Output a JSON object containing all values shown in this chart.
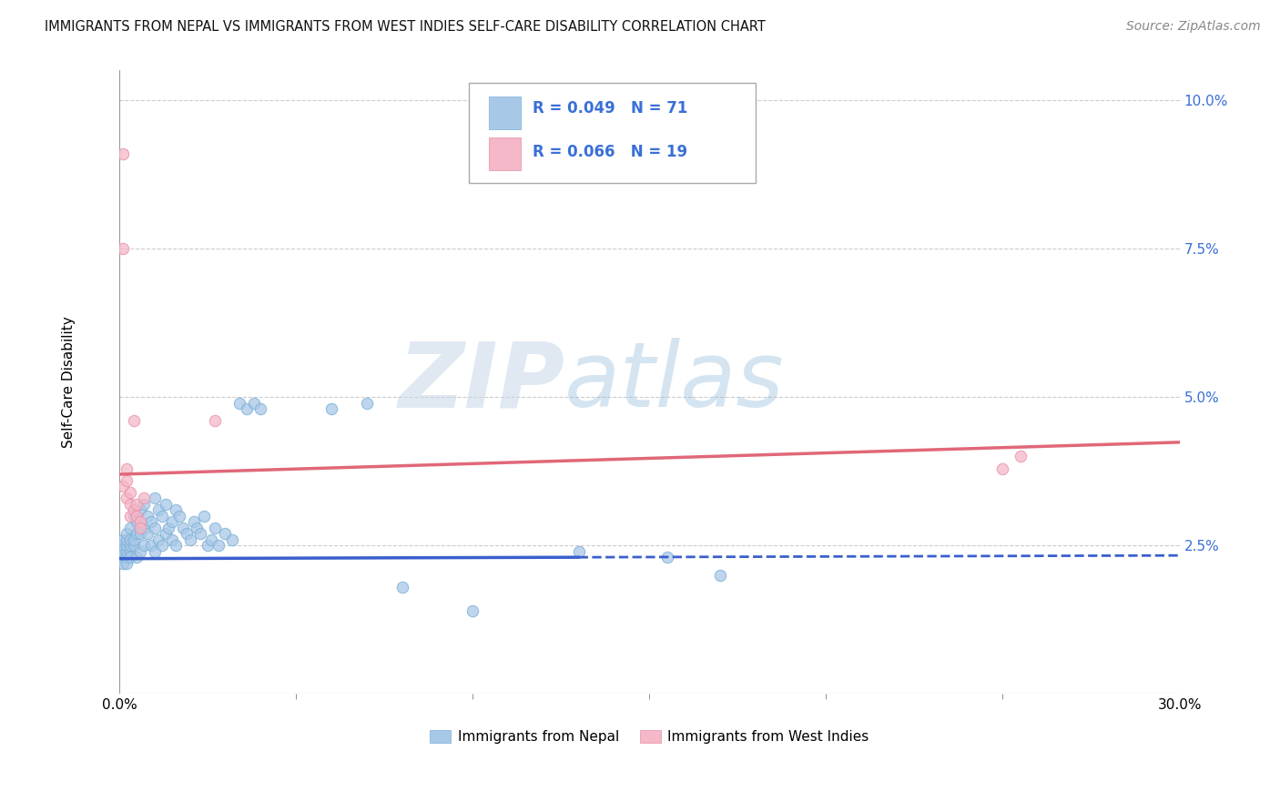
{
  "title": "IMMIGRANTS FROM NEPAL VS IMMIGRANTS FROM WEST INDIES SELF-CARE DISABILITY CORRELATION CHART",
  "source": "Source: ZipAtlas.com",
  "ylabel": "Self-Care Disability",
  "xlim": [
    0.0,
    0.3
  ],
  "ylim": [
    0.0,
    0.105
  ],
  "x_ticks": [
    0.0,
    0.3
  ],
  "x_tick_labels": [
    "0.0%",
    "30.0%"
  ],
  "y_ticks": [
    0.025,
    0.05,
    0.075,
    0.1
  ],
  "y_tick_labels": [
    "2.5%",
    "5.0%",
    "7.5%",
    "10.0%"
  ],
  "nepal_R": 0.049,
  "nepal_N": 71,
  "westindies_R": 0.066,
  "westindies_N": 19,
  "nepal_color": "#a8c8e8",
  "nepal_edge_color": "#7aafd4",
  "westindies_color": "#f4b8c8",
  "westindies_edge_color": "#e890a8",
  "nepal_line_color": "#3a5fcd",
  "westindies_line_color": "#e06878",
  "legend_label_nepal": "Immigrants from Nepal",
  "legend_label_westindies": "Immigrants from West Indies",
  "background_color": "#ffffff",
  "grid_color": "#cccccc",
  "watermark_zip": "ZIP",
  "watermark_atlas": "atlas",
  "nepal_trend_intercept": 0.0228,
  "nepal_trend_slope": 0.0018,
  "westindies_trend_intercept": 0.037,
  "westindies_trend_slope": 0.018,
  "nepal_scatter_x": [
    0.001,
    0.001,
    0.001,
    0.001,
    0.001,
    0.002,
    0.002,
    0.002,
    0.002,
    0.002,
    0.002,
    0.003,
    0.003,
    0.003,
    0.003,
    0.003,
    0.004,
    0.004,
    0.004,
    0.005,
    0.005,
    0.005,
    0.006,
    0.006,
    0.006,
    0.007,
    0.007,
    0.007,
    0.008,
    0.008,
    0.009,
    0.009,
    0.01,
    0.01,
    0.01,
    0.011,
    0.011,
    0.012,
    0.012,
    0.013,
    0.013,
    0.014,
    0.015,
    0.015,
    0.016,
    0.016,
    0.017,
    0.018,
    0.019,
    0.02,
    0.021,
    0.022,
    0.023,
    0.024,
    0.025,
    0.026,
    0.027,
    0.028,
    0.03,
    0.032,
    0.034,
    0.036,
    0.038,
    0.04,
    0.06,
    0.07,
    0.08,
    0.1,
    0.13,
    0.155,
    0.17
  ],
  "nepal_scatter_y": [
    0.023,
    0.024,
    0.025,
    0.026,
    0.022,
    0.023,
    0.024,
    0.025,
    0.022,
    0.026,
    0.027,
    0.024,
    0.025,
    0.026,
    0.023,
    0.028,
    0.025,
    0.026,
    0.03,
    0.023,
    0.027,
    0.029,
    0.024,
    0.027,
    0.031,
    0.025,
    0.028,
    0.032,
    0.027,
    0.03,
    0.025,
    0.029,
    0.024,
    0.028,
    0.033,
    0.026,
    0.031,
    0.025,
    0.03,
    0.027,
    0.032,
    0.028,
    0.026,
    0.029,
    0.025,
    0.031,
    0.03,
    0.028,
    0.027,
    0.026,
    0.029,
    0.028,
    0.027,
    0.03,
    0.025,
    0.026,
    0.028,
    0.025,
    0.027,
    0.026,
    0.049,
    0.048,
    0.049,
    0.048,
    0.048,
    0.049,
    0.018,
    0.014,
    0.024,
    0.023,
    0.02
  ],
  "westindies_scatter_x": [
    0.001,
    0.001,
    0.001,
    0.002,
    0.002,
    0.002,
    0.003,
    0.003,
    0.003,
    0.004,
    0.004,
    0.005,
    0.005,
    0.006,
    0.006,
    0.007,
    0.027,
    0.25,
    0.255
  ],
  "westindies_scatter_y": [
    0.091,
    0.075,
    0.035,
    0.033,
    0.036,
    0.038,
    0.034,
    0.03,
    0.032,
    0.031,
    0.046,
    0.032,
    0.03,
    0.029,
    0.028,
    0.033,
    0.046,
    0.038,
    0.04
  ]
}
